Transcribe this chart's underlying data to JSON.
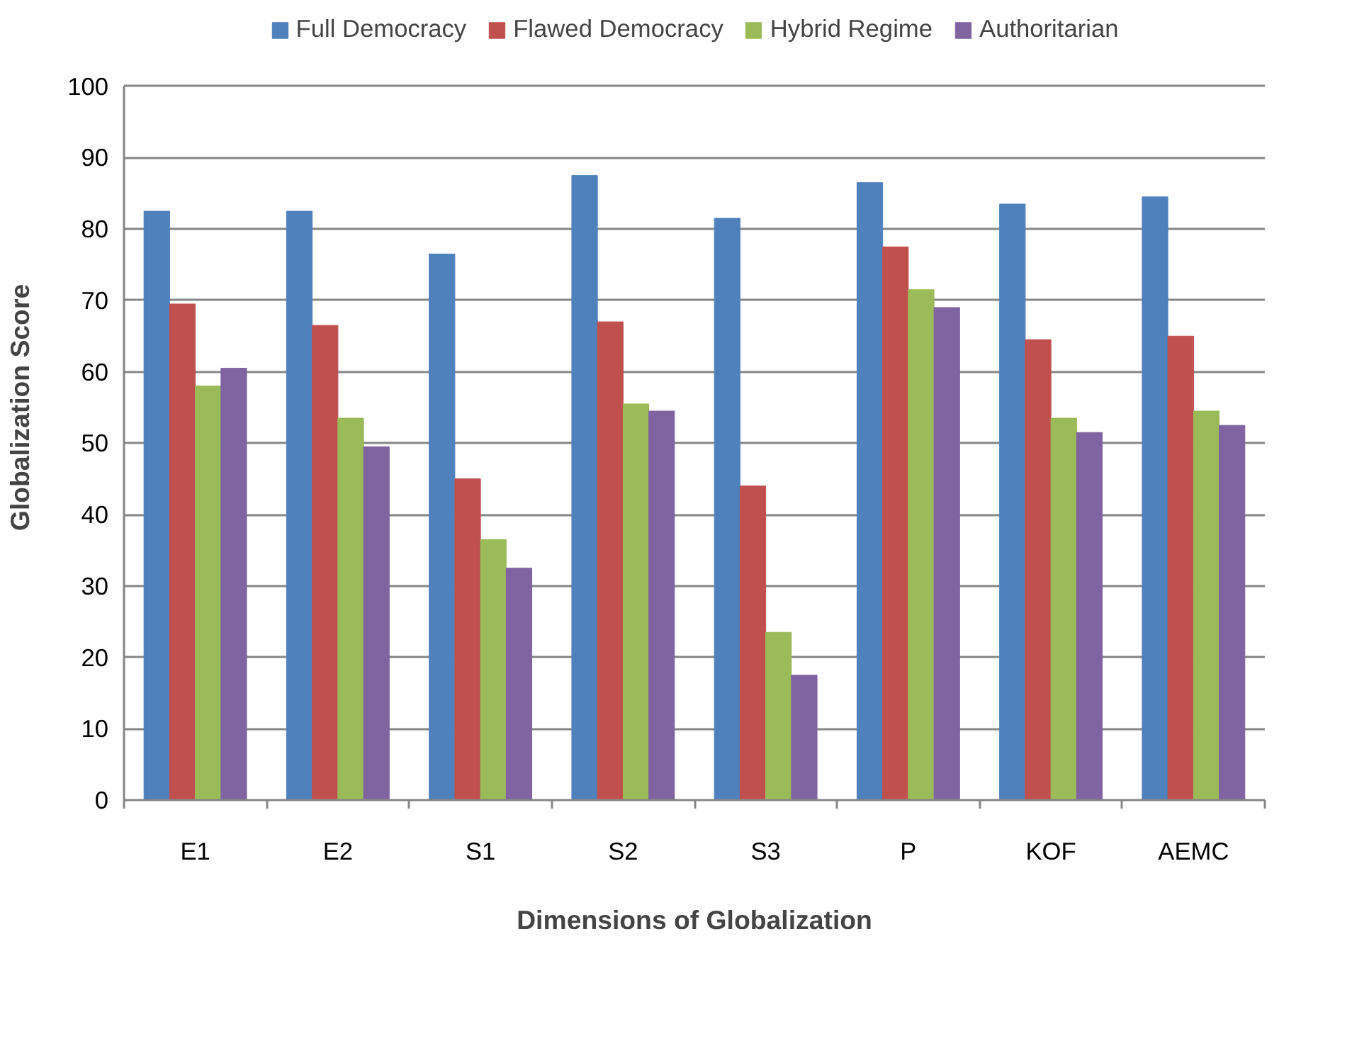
{
  "chart_data": {
    "type": "bar",
    "xlabel": "Dimensions of Globalization",
    "ylabel": "Globalization Score",
    "categories": [
      "E1",
      "E2",
      "S1",
      "S2",
      "S3",
      "P",
      "KOF",
      "AEMC"
    ],
    "series": [
      {
        "name": "Full Democracy",
        "color": "#4f81bd",
        "values": [
          82.5,
          82.5,
          76.5,
          87.5,
          81.5,
          86.5,
          83.5,
          84.5
        ]
      },
      {
        "name": "Flawed Democracy",
        "color": "#c0504d",
        "values": [
          69.5,
          66.5,
          45,
          67,
          44,
          77.5,
          64.5,
          65
        ]
      },
      {
        "name": "Hybrid Regime",
        "color": "#9bbb59",
        "values": [
          58,
          53.5,
          36.5,
          55.5,
          23.5,
          71.5,
          53.5,
          54.5
        ]
      },
      {
        "name": "Authoritarian",
        "color": "#8064a2",
        "values": [
          60.5,
          49.5,
          32.5,
          54.5,
          17.5,
          69,
          51.5,
          52.5
        ]
      }
    ],
    "ylim": [
      0,
      100
    ],
    "yticks": [
      0,
      10,
      20,
      30,
      40,
      50,
      60,
      70,
      80,
      90,
      100
    ],
    "grid": "y",
    "legend": "top"
  }
}
